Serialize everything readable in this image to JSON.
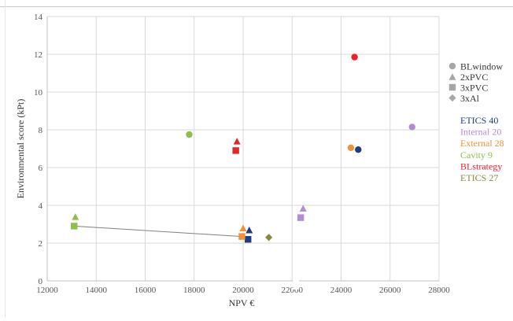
{
  "chart_data": {
    "type": "scatter",
    "xlabel": "NPV €",
    "ylabel": "Environmental score (kPt)",
    "xlim": [
      12000,
      28000
    ],
    "ylim": [
      0,
      14
    ],
    "x_ticks": [
      "12000",
      "14000",
      "16000",
      "18000",
      "20000",
      "22000",
      "24000",
      "26000",
      "28000"
    ],
    "y_ticks": [
      "0",
      "2",
      "4",
      "6",
      "8",
      "10",
      "12",
      "14"
    ],
    "grid": true,
    "legend_position": "right",
    "shape_legend": [
      {
        "shape": "circle",
        "label": "BLwindow"
      },
      {
        "shape": "triangle",
        "label": "2xPVC"
      },
      {
        "shape": "square",
        "label": "3xPVC"
      },
      {
        "shape": "diamond",
        "label": "3xAl"
      }
    ],
    "color_legend": [
      {
        "label": "ETICS 40",
        "color": "#1f3d7a"
      },
      {
        "label": "Internal 20",
        "color": "#b08cd0"
      },
      {
        "label": "External 28",
        "color": "#f0923a"
      },
      {
        "label": "Cavity 9",
        "color": "#8cc04a"
      },
      {
        "label": "BLstrategy",
        "color": "#e8242a"
      },
      {
        "label": "ETICS 27",
        "color": "#8a8a3a"
      }
    ],
    "series": [
      {
        "name": "ETICS 40",
        "color": "#1f3d7a",
        "points": [
          {
            "shape": "circle",
            "x": 24700,
            "y": 6.95
          },
          {
            "shape": "triangle",
            "x": 20250,
            "y": 2.7
          },
          {
            "shape": "square",
            "x": 20200,
            "y": 2.2
          }
        ]
      },
      {
        "name": "Internal 20",
        "color": "#b08cd0",
        "points": [
          {
            "shape": "circle",
            "x": 26900,
            "y": 8.15
          },
          {
            "shape": "triangle",
            "x": 22450,
            "y": 3.85
          },
          {
            "shape": "square",
            "x": 22350,
            "y": 3.35
          }
        ]
      },
      {
        "name": "External 28",
        "color": "#f0923a",
        "points": [
          {
            "shape": "circle",
            "x": 24400,
            "y": 7.05
          },
          {
            "shape": "triangle",
            "x": 20000,
            "y": 2.8
          },
          {
            "shape": "square",
            "x": 19950,
            "y": 2.35
          }
        ]
      },
      {
        "name": "Cavity 9",
        "color": "#8cc04a",
        "points": [
          {
            "shape": "circle",
            "x": 17800,
            "y": 7.75
          },
          {
            "shape": "triangle",
            "x": 13150,
            "y": 3.4
          },
          {
            "shape": "square",
            "x": 13100,
            "y": 2.9
          }
        ]
      },
      {
        "name": "BLstrategy",
        "color": "#e8242a",
        "points": [
          {
            "shape": "circle",
            "x": 24550,
            "y": 11.85
          },
          {
            "shape": "triangle",
            "x": 19750,
            "y": 7.4
          },
          {
            "shape": "square",
            "x": 19700,
            "y": 6.9
          }
        ]
      },
      {
        "name": "ETICS 27",
        "color": "#8a8a3a",
        "points": [
          {
            "shape": "diamond",
            "x": 21050,
            "y": 2.3
          }
        ]
      }
    ],
    "lines": [
      {
        "from": {
          "x": 13100,
          "y": 2.9
        },
        "to": {
          "x": 19950,
          "y": 2.35
        },
        "color": "#808080"
      }
    ]
  }
}
